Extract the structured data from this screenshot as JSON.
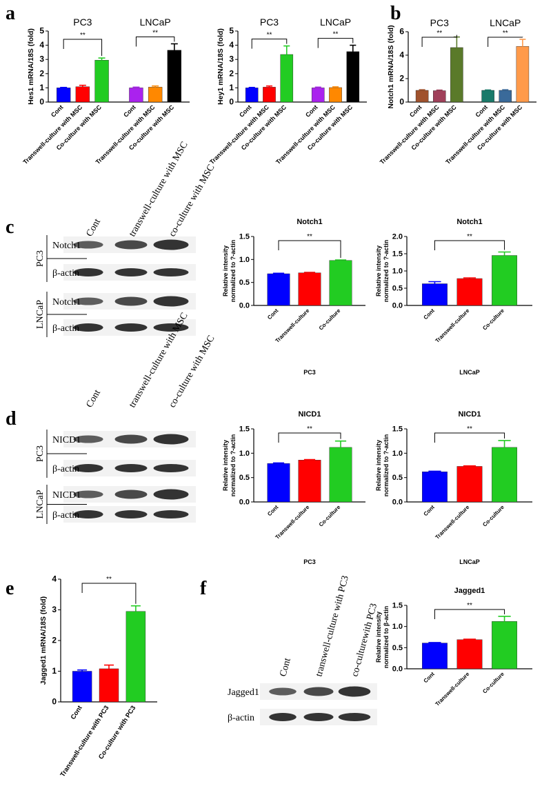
{
  "panels": [
    "a",
    "b",
    "c",
    "d",
    "e",
    "f"
  ],
  "chart_data": [
    {
      "type": "bar",
      "ylabel": "Hes1 mRNA/18S (fold)",
      "categories": [
        "Cont",
        "Transwell-culture with MSC",
        "Co-culture with MSC",
        "Cont",
        "Transwell-culture with MSC",
        "Co-culture with MSC"
      ],
      "values": [
        1.0,
        1.08,
        2.95,
        1.0,
        1.05,
        3.65
      ],
      "errors": [
        0.03,
        0.1,
        0.15,
        0.05,
        0.08,
        0.45
      ],
      "colors": [
        "#0000ff",
        "#ff0000",
        "#22cc22",
        "#aa22ee",
        "#ff8800",
        "#000000"
      ],
      "groups": [
        {
          "name": "PC3",
          "annotation": "**"
        },
        {
          "name": "LNCaP",
          "annotation": "**"
        }
      ],
      "ylim": [
        0,
        5
      ],
      "yticks": [
        0,
        1,
        2,
        3,
        4,
        5
      ]
    },
    {
      "type": "bar",
      "ylabel": "Hey1 mRNA/18S (fold)",
      "categories": [
        "Cont",
        "Transwell-culture with MSC",
        "Co-culture with MSC",
        "Cont",
        "Transwell-culture with MSC",
        "Co-culture with MSC"
      ],
      "values": [
        1.0,
        1.05,
        3.35,
        1.0,
        1.02,
        3.55
      ],
      "errors": [
        0.03,
        0.08,
        0.6,
        0.05,
        0.05,
        0.45
      ],
      "colors": [
        "#0000ff",
        "#ff0000",
        "#22cc22",
        "#aa22ee",
        "#ff8800",
        "#000000"
      ],
      "groups": [
        {
          "name": "PC3",
          "annotation": "**"
        },
        {
          "name": "LNCaP",
          "annotation": "**"
        }
      ],
      "ylim": [
        0,
        5
      ],
      "yticks": [
        0,
        1,
        2,
        3,
        4,
        5
      ]
    },
    {
      "type": "bar",
      "ylabel": "Notch1 mRNA/18S (fold)",
      "categories": [
        "Cont",
        "Transwell-culture with MSC",
        "Co-culture with MSC",
        "Cont",
        "Transwell-culture with MSC",
        "Co-culture with MSC"
      ],
      "values": [
        1.0,
        0.97,
        4.65,
        1.0,
        1.0,
        4.75
      ],
      "errors": [
        0.05,
        0.05,
        0.9,
        0.03,
        0.05,
        0.6
      ],
      "colors": [
        "#a0522d",
        "#a0405a",
        "#5a7a2a",
        "#1a7a6a",
        "#3a6a9a",
        "#ff9a4a"
      ],
      "groups": [
        {
          "name": "PC3",
          "annotation": "**"
        },
        {
          "name": "LNCaP",
          "annotation": "**"
        }
      ],
      "ylim": [
        0,
        6
      ],
      "yticks": [
        0,
        2,
        4,
        6
      ]
    },
    {
      "type": "bar",
      "title": "Notch1",
      "ylabel": [
        "Relative intensity",
        "normalized to ?-actin"
      ],
      "xlabel": "PC3",
      "categories": [
        "Cont",
        "Transwell-culture",
        "Co-culture"
      ],
      "values": [
        0.69,
        0.71,
        0.98
      ],
      "errors": [
        0.01,
        0.01,
        0.01
      ],
      "colors": [
        "#0000ff",
        "#ff0000",
        "#22cc22"
      ],
      "annotation": "**",
      "ylim": [
        0,
        1.5
      ],
      "yticks": [
        {
          "value": 0,
          "label": "0.0"
        },
        0.5,
        {
          "value": 1,
          "label": "1.0"
        },
        1.5
      ]
    },
    {
      "type": "bar",
      "title": "Notch1",
      "ylabel": [
        "Relative intensity",
        "normalized to ?-actin"
      ],
      "xlabel": "LNCaP",
      "categories": [
        "Cont",
        "Transwell-culture",
        "Co-culture"
      ],
      "values": [
        0.63,
        0.78,
        1.45
      ],
      "errors": [
        0.06,
        0.02,
        0.1
      ],
      "colors": [
        "#0000ff",
        "#ff0000",
        "#22cc22"
      ],
      "annotation": "**",
      "ylim": [
        0,
        2
      ],
      "yticks": [
        {
          "value": 0,
          "label": "0.0"
        },
        0.5,
        {
          "value": 1,
          "label": "1.0"
        },
        1.5,
        {
          "value": 2,
          "label": "2.0"
        }
      ]
    },
    {
      "type": "bar",
      "title": "NICD1",
      "ylabel": [
        "Relative intensity",
        "normalized to ?-actin"
      ],
      "xlabel": "PC3",
      "categories": [
        "Cont",
        "Transwell-culture",
        "Co-culture"
      ],
      "values": [
        0.79,
        0.86,
        1.12
      ],
      "errors": [
        0.01,
        0.01,
        0.13
      ],
      "colors": [
        "#0000ff",
        "#ff0000",
        "#22cc22"
      ],
      "annotation": "**",
      "ylim": [
        0,
        1.5
      ],
      "yticks": [
        {
          "value": 0,
          "label": "0.0"
        },
        0.5,
        {
          "value": 1,
          "label": "1.0"
        },
        1.5
      ]
    },
    {
      "type": "bar",
      "title": "NICD1",
      "ylabel": [
        "Relative intensity",
        "normalized to ?-actin"
      ],
      "xlabel": "LNCaP",
      "categories": [
        "Cont",
        "Transwell-culture",
        "Co-culture"
      ],
      "values": [
        0.62,
        0.73,
        1.12
      ],
      "errors": [
        0.01,
        0.01,
        0.14
      ],
      "colors": [
        "#0000ff",
        "#ff0000",
        "#22cc22"
      ],
      "annotation": "**",
      "ylim": [
        0,
        1.5
      ],
      "yticks": [
        {
          "value": 0,
          "label": "0.0"
        },
        0.5,
        {
          "value": 1,
          "label": "1.0"
        },
        1.5
      ]
    },
    {
      "type": "bar",
      "ylabel": "Jagged1 mRNA/18S (fold)",
      "categories": [
        "Cont",
        "Transwell-culture with PC3",
        "Co-culture with PC3"
      ],
      "values": [
        1.0,
        1.08,
        2.95
      ],
      "errors": [
        0.04,
        0.12,
        0.18
      ],
      "colors": [
        "#0000ff",
        "#ff0000",
        "#22cc22"
      ],
      "annotation": "**",
      "ylim": [
        0,
        4
      ],
      "yticks": [
        0,
        1,
        2,
        3,
        4
      ]
    },
    {
      "type": "bar",
      "title": "Jagged1",
      "ylabel": [
        "Relative intensity",
        "normalized to β-actin"
      ],
      "categories": [
        "Cont",
        "Transwell-culture",
        "Co-culture"
      ],
      "values": [
        0.61,
        0.69,
        1.12
      ],
      "errors": [
        0.01,
        0.01,
        0.12
      ],
      "colors": [
        "#0000ff",
        "#ff0000",
        "#22cc22"
      ],
      "annotation": "**",
      "ylim": [
        0,
        1.5
      ],
      "yticks": [
        {
          "value": 0,
          "label": "0.0"
        },
        0.5,
        {
          "value": 1,
          "label": "1.0"
        },
        1.5
      ]
    }
  ],
  "blots": [
    {
      "columns": [
        "Cont",
        "transwell-culture with MSC",
        "co-culture with MSC"
      ],
      "groups": [
        {
          "name": "PC3",
          "rows": [
            "Notch1",
            "β-actin"
          ]
        },
        {
          "name": "LNCaP",
          "rows": [
            "Notch1",
            "β-actin"
          ]
        }
      ]
    },
    {
      "columns": [
        "Cont",
        "transwell-culture with MSC",
        "co-culture with MSC"
      ],
      "groups": [
        {
          "name": "PC3",
          "rows": [
            "NICD1",
            "β-actin"
          ]
        },
        {
          "name": "LNCaP",
          "rows": [
            "NICD1",
            "β-actin"
          ]
        }
      ]
    },
    {
      "columns": [
        "Cont",
        "transwell-culture with PC3",
        "co-culturewith PC3"
      ],
      "groups": [
        {
          "rows": [
            "Jagged1",
            "β-actin"
          ]
        }
      ]
    }
  ]
}
